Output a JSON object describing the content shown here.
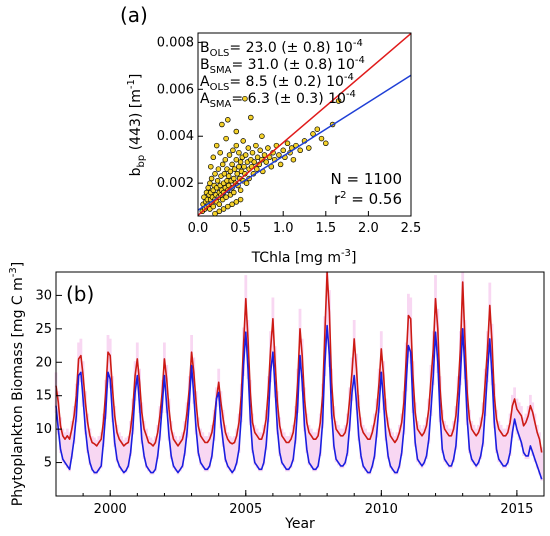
{
  "chart_data": [
    {
      "panel_label": "(a)",
      "type": "scatter",
      "ylabel_main": "b",
      "ylabel_sub": "bp",
      "ylabel_rest": " (443) [m",
      "ylabel_sup": "-1",
      "ylabel_end": "]",
      "xlabel_main": "TChla [mg m",
      "xlabel_sup": "-3",
      "xlabel_end": "]",
      "xlim": [
        0.0,
        2.5
      ],
      "ylim": [
        0.0006,
        0.0084
      ],
      "xticks": [
        "0.0",
        "0.5",
        "1.0",
        "1.5",
        "2.0",
        "2.5"
      ],
      "xtick_values": [
        0.0,
        0.5,
        1.0,
        1.5,
        2.0,
        2.5
      ],
      "yticks": [
        "0.002",
        "0.004",
        "0.006",
        "0.008"
      ],
      "ytick_values": [
        0.002,
        0.004,
        0.006,
        0.008
      ],
      "annotations": [
        {
          "main": "B",
          "sub": "OLS",
          "text": "= 23.0 (± 0.8) 10",
          "sup": "-4",
          "color": "#1f3fd6"
        },
        {
          "main": "B",
          "sub": "SMA",
          "text": "= 31.0 (± 0.8) 10",
          "sup": "-4",
          "color": "#e01b1b"
        },
        {
          "main": "A",
          "sub": "OLS",
          "text": "= 8.5 (± 0.2) 10",
          "sup": "-4",
          "color": "#1f3fd6"
        },
        {
          "main": "A",
          "sub": "SMA",
          "text": "= 6.3 (± 0.3) 10",
          "sup": "-4",
          "color": "#e01b1b"
        }
      ],
      "n_text": "N = 1100",
      "r2_main": "r",
      "r2_sup": "2",
      "r2_rest": " = 0.56",
      "fits": [
        {
          "name": "OLS",
          "slope": 0.0023,
          "intercept": 0.00085,
          "color": "#1f3fd6"
        },
        {
          "name": "SMA",
          "slope": 0.0031,
          "intercept": 0.00063,
          "color": "#e01b1b"
        }
      ],
      "point_color": "#f5d22a",
      "points": [
        [
          0.05,
          0.0008
        ],
        [
          0.06,
          0.0011
        ],
        [
          0.07,
          0.0014
        ],
        [
          0.08,
          0.0009
        ],
        [
          0.09,
          0.0012
        ],
        [
          0.1,
          0.0016
        ],
        [
          0.1,
          0.001
        ],
        [
          0.11,
          0.0013
        ],
        [
          0.12,
          0.0018
        ],
        [
          0.12,
          0.0011
        ],
        [
          0.13,
          0.0015
        ],
        [
          0.14,
          0.0009
        ],
        [
          0.14,
          0.002
        ],
        [
          0.15,
          0.0013
        ],
        [
          0.15,
          0.0016
        ],
        [
          0.16,
          0.0011
        ],
        [
          0.16,
          0.0022
        ],
        [
          0.17,
          0.0014
        ],
        [
          0.18,
          0.0017
        ],
        [
          0.18,
          0.001
        ],
        [
          0.19,
          0.0019
        ],
        [
          0.2,
          0.0013
        ],
        [
          0.2,
          0.0024
        ],
        [
          0.21,
          0.0015
        ],
        [
          0.22,
          0.0012
        ],
        [
          0.22,
          0.0018
        ],
        [
          0.23,
          0.0021
        ],
        [
          0.24,
          0.0014
        ],
        [
          0.24,
          0.0026
        ],
        [
          0.25,
          0.0016
        ],
        [
          0.25,
          0.0011
        ],
        [
          0.26,
          0.0019
        ],
        [
          0.27,
          0.0023
        ],
        [
          0.27,
          0.0015
        ],
        [
          0.28,
          0.0017
        ],
        [
          0.29,
          0.0028
        ],
        [
          0.29,
          0.0013
        ],
        [
          0.3,
          0.002
        ],
        [
          0.3,
          0.0016
        ],
        [
          0.31,
          0.0024
        ],
        [
          0.32,
          0.0018
        ],
        [
          0.32,
          0.003
        ],
        [
          0.33,
          0.0014
        ],
        [
          0.34,
          0.0021
        ],
        [
          0.34,
          0.0026
        ],
        [
          0.35,
          0.0017
        ],
        [
          0.36,
          0.0023
        ],
        [
          0.36,
          0.0019
        ],
        [
          0.37,
          0.0032
        ],
        [
          0.38,
          0.0015
        ],
        [
          0.38,
          0.0025
        ],
        [
          0.39,
          0.0021
        ],
        [
          0.4,
          0.0018
        ],
        [
          0.4,
          0.0028
        ],
        [
          0.41,
          0.0034
        ],
        [
          0.42,
          0.0022
        ],
        [
          0.42,
          0.0016
        ],
        [
          0.43,
          0.0026
        ],
        [
          0.44,
          0.002
        ],
        [
          0.45,
          0.003
        ],
        [
          0.45,
          0.0036
        ],
        [
          0.46,
          0.0024
        ],
        [
          0.47,
          0.0019
        ],
        [
          0.48,
          0.0027
        ],
        [
          0.48,
          0.0033
        ],
        [
          0.49,
          0.0022
        ],
        [
          0.5,
          0.0029
        ],
        [
          0.5,
          0.0017
        ],
        [
          0.51,
          0.0025
        ],
        [
          0.52,
          0.0031
        ],
        [
          0.53,
          0.0038
        ],
        [
          0.53,
          0.0021
        ],
        [
          0.54,
          0.0027
        ],
        [
          0.55,
          0.0024
        ],
        [
          0.56,
          0.0032
        ],
        [
          0.57,
          0.002
        ],
        [
          0.58,
          0.0029
        ],
        [
          0.59,
          0.0035
        ],
        [
          0.6,
          0.0026
        ],
        [
          0.6,
          0.0022
        ],
        [
          0.62,
          0.003
        ],
        [
          0.63,
          0.0027
        ],
        [
          0.64,
          0.0033
        ],
        [
          0.65,
          0.0024
        ],
        [
          0.66,
          0.0029
        ],
        [
          0.68,
          0.0036
        ],
        [
          0.69,
          0.0026
        ],
        [
          0.7,
          0.0031
        ],
        [
          0.72,
          0.0028
        ],
        [
          0.73,
          0.0034
        ],
        [
          0.75,
          0.003
        ],
        [
          0.76,
          0.0025
        ],
        [
          0.78,
          0.0032
        ],
        [
          0.8,
          0.0029
        ],
        [
          0.82,
          0.0035
        ],
        [
          0.84,
          0.0031
        ],
        [
          0.86,
          0.0027
        ],
        [
          0.88,
          0.0033
        ],
        [
          0.9,
          0.003
        ],
        [
          0.92,
          0.0036
        ],
        [
          0.95,
          0.0032
        ],
        [
          0.97,
          0.0028
        ],
        [
          1.0,
          0.0034
        ],
        [
          1.02,
          0.0031
        ],
        [
          1.05,
          0.0037
        ],
        [
          1.08,
          0.0033
        ],
        [
          1.1,
          0.0035
        ],
        [
          1.12,
          0.003
        ],
        [
          1.15,
          0.0036
        ],
        [
          1.2,
          0.0034
        ],
        [
          1.25,
          0.0038
        ],
        [
          1.3,
          0.0035
        ],
        [
          1.35,
          0.0041
        ],
        [
          1.4,
          0.0043
        ],
        [
          1.45,
          0.0039
        ],
        [
          1.5,
          0.0037
        ],
        [
          1.58,
          0.0045
        ],
        [
          1.65,
          0.0055
        ],
        [
          0.55,
          0.0056
        ],
        [
          0.35,
          0.0047
        ],
        [
          0.28,
          0.0045
        ],
        [
          0.45,
          0.0042
        ],
        [
          0.62,
          0.0048
        ],
        [
          0.75,
          0.004
        ],
        [
          0.18,
          0.0031
        ],
        [
          0.22,
          0.0036
        ],
        [
          0.15,
          0.0027
        ],
        [
          0.26,
          0.0033
        ],
        [
          0.33,
          0.0039
        ],
        [
          0.2,
          0.0007
        ],
        [
          0.3,
          0.0009
        ],
        [
          0.4,
          0.0011
        ],
        [
          0.25,
          0.0008
        ],
        [
          0.35,
          0.001
        ],
        [
          0.5,
          0.0013
        ],
        [
          0.45,
          0.0012
        ]
      ]
    },
    {
      "panel_label": "(b)",
      "type": "line",
      "ylabel_main": "Phytoplankton Biomass [mg C m",
      "ylabel_sup": "-3",
      "ylabel_end": "]",
      "xlabel": "Year",
      "xlim": [
        1998.0,
        2016.0
      ],
      "ylim": [
        0,
        33.5
      ],
      "xticks": [
        "2000",
        "2005",
        "2010",
        "2015"
      ],
      "xtick_values": [
        2000,
        2005,
        2010,
        2015
      ],
      "yticks": [
        "5",
        "10",
        "15",
        "20",
        "25",
        "30"
      ],
      "ytick_values": [
        5,
        10,
        15,
        20,
        25,
        30
      ],
      "x_start": 1998.0,
      "x_step": 0.08333,
      "band_color": "#f8d7f2",
      "series": [
        {
          "line_color": "#cc1a14",
          "values": [
            16.5,
            14.0,
            10.5,
            9.0,
            8.5,
            9.0,
            8.5,
            10.0,
            12.0,
            15.0,
            20.5,
            21.0,
            18.0,
            14.0,
            11.0,
            9.0,
            8.0,
            7.8,
            7.5,
            8.0,
            8.5,
            11.0,
            15.5,
            21.5,
            21.0,
            16.0,
            12.0,
            9.5,
            8.5,
            8.0,
            7.5,
            7.8,
            8.0,
            10.0,
            13.0,
            18.0,
            20.5,
            17.0,
            12.5,
            10.0,
            9.0,
            8.0,
            7.8,
            7.5,
            8.0,
            9.5,
            12.0,
            15.5,
            20.5,
            17.5,
            13.0,
            10.0,
            8.5,
            8.0,
            7.5,
            8.0,
            8.5,
            10.0,
            12.5,
            16.0,
            21.5,
            18.5,
            14.0,
            10.5,
            9.0,
            8.5,
            8.0,
            8.0,
            8.5,
            9.5,
            11.5,
            14.5,
            17.0,
            14.0,
            11.5,
            9.5,
            8.5,
            8.0,
            7.8,
            8.0,
            9.0,
            11.0,
            15.0,
            22.5,
            29.5,
            23.5,
            15.5,
            11.0,
            9.5,
            9.0,
            8.5,
            8.5,
            9.5,
            11.5,
            16.0,
            22.0,
            26.5,
            20.0,
            14.0,
            10.5,
            9.0,
            8.5,
            8.0,
            8.0,
            8.5,
            9.5,
            12.0,
            17.0,
            25.0,
            21.0,
            14.5,
            11.0,
            9.5,
            9.0,
            8.5,
            8.5,
            9.0,
            11.0,
            15.0,
            24.0,
            33.5,
            27.5,
            17.0,
            12.0,
            10.0,
            9.5,
            9.0,
            9.0,
            9.5,
            11.0,
            14.5,
            18.5,
            23.5,
            19.0,
            13.5,
            10.5,
            9.5,
            9.0,
            8.5,
            8.5,
            9.5,
            11.0,
            13.0,
            17.0,
            22.0,
            18.0,
            13.0,
            10.5,
            9.0,
            8.5,
            8.0,
            8.5,
            9.5,
            11.0,
            14.0,
            20.5,
            27.0,
            26.5,
            18.0,
            12.5,
            10.0,
            9.5,
            9.0,
            9.5,
            10.5,
            13.0,
            17.5,
            22.0,
            29.5,
            25.0,
            16.0,
            11.5,
            10.0,
            9.5,
            9.0,
            9.0,
            10.0,
            12.0,
            16.0,
            22.0,
            32.0,
            23.5,
            15.5,
            11.5,
            10.0,
            9.5,
            9.0,
            9.5,
            10.5,
            12.5,
            17.0,
            22.0,
            28.5,
            23.0,
            15.0,
            11.5,
            10.0,
            9.5,
            9.0,
            9.0,
            9.5,
            11.0,
            13.5,
            14.5,
            13.0,
            12.5,
            12.0,
            10.5,
            11.0,
            12.0,
            13.5,
            12.5,
            11.0,
            9.5,
            8.5,
            6.5
          ]
        },
        {
          "line_color": "#1a1ee0",
          "values": [
            13.5,
            10.0,
            7.0,
            5.5,
            5.0,
            4.5,
            4.0,
            6.0,
            8.5,
            12.0,
            18.0,
            18.5,
            14.5,
            10.0,
            7.0,
            5.0,
            4.0,
            3.5,
            3.5,
            4.0,
            4.5,
            8.0,
            12.5,
            18.5,
            17.5,
            12.0,
            8.0,
            5.5,
            4.5,
            4.0,
            3.5,
            3.8,
            4.5,
            6.5,
            10.0,
            15.5,
            18.0,
            13.5,
            8.5,
            6.0,
            4.5,
            4.0,
            3.5,
            3.5,
            4.0,
            6.0,
            9.0,
            13.5,
            18.0,
            13.5,
            9.0,
            6.0,
            4.5,
            4.0,
            3.5,
            4.0,
            4.5,
            6.5,
            9.5,
            14.0,
            19.5,
            15.0,
            10.0,
            6.5,
            5.0,
            4.5,
            4.0,
            4.0,
            4.5,
            6.0,
            9.0,
            14.5,
            15.5,
            11.0,
            8.0,
            5.5,
            4.5,
            4.0,
            3.5,
            4.0,
            5.0,
            7.0,
            12.0,
            19.5,
            24.5,
            19.0,
            11.5,
            7.0,
            5.0,
            4.5,
            4.0,
            4.0,
            5.0,
            7.5,
            12.0,
            18.5,
            21.5,
            16.0,
            10.0,
            6.5,
            5.0,
            4.5,
            4.0,
            4.0,
            4.5,
            5.5,
            8.5,
            13.5,
            21.0,
            17.0,
            10.5,
            7.0,
            5.0,
            4.5,
            4.0,
            4.0,
            4.5,
            6.5,
            11.0,
            19.5,
            25.5,
            21.0,
            12.5,
            7.5,
            5.5,
            5.0,
            4.5,
            4.5,
            5.0,
            6.5,
            10.5,
            15.5,
            18.0,
            14.0,
            9.0,
            6.0,
            4.5,
            4.0,
            3.5,
            3.5,
            4.5,
            6.0,
            9.5,
            13.5,
            18.5,
            14.0,
            9.0,
            6.0,
            4.5,
            4.0,
            3.5,
            3.5,
            4.5,
            6.5,
            10.0,
            17.0,
            22.5,
            21.5,
            13.5,
            8.0,
            5.5,
            5.0,
            4.5,
            5.0,
            6.0,
            8.5,
            13.0,
            18.0,
            24.5,
            20.0,
            12.0,
            7.0,
            5.5,
            5.0,
            4.5,
            4.5,
            5.5,
            7.5,
            12.0,
            18.0,
            25.0,
            19.0,
            11.5,
            7.0,
            5.5,
            5.0,
            4.5,
            5.0,
            6.0,
            8.0,
            13.0,
            18.5,
            23.5,
            18.0,
            11.0,
            7.0,
            5.5,
            5.0,
            4.5,
            4.5,
            5.0,
            6.5,
            9.5,
            11.5,
            10.0,
            9.0,
            8.0,
            6.5,
            6.0,
            6.0,
            7.5,
            6.5,
            5.5,
            4.5,
            3.5,
            2.5
          ]
        }
      ]
    }
  ]
}
